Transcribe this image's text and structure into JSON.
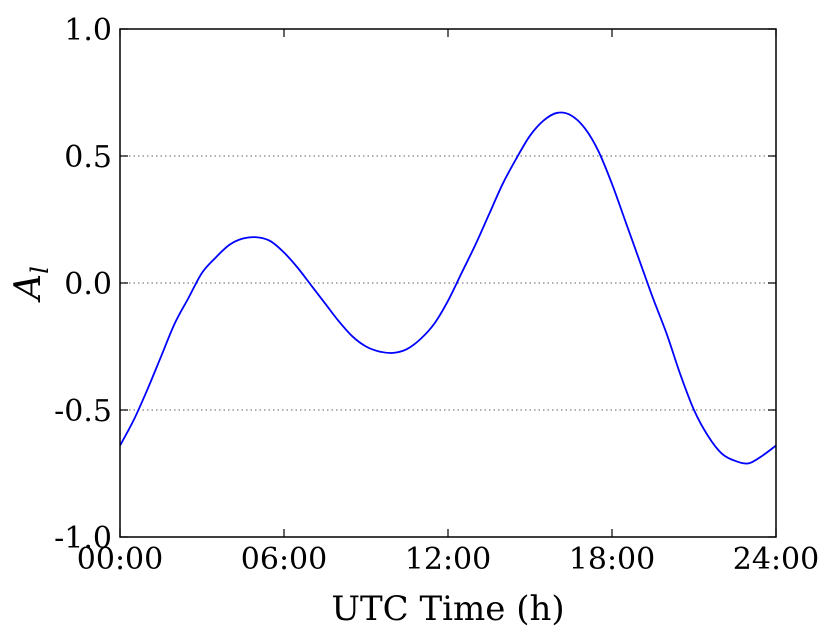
{
  "chart_data": {
    "type": "line",
    "xlabel": "UTC Time (h)",
    "ylabel": {
      "main": "A",
      "subscript": "l"
    },
    "xlim": [
      0,
      24
    ],
    "ylim": [
      -1.0,
      1.0
    ],
    "xticks": [
      {
        "value": 0,
        "label": "00:00"
      },
      {
        "value": 6,
        "label": "06:00"
      },
      {
        "value": 12,
        "label": "12:00"
      },
      {
        "value": 18,
        "label": "18:00"
      },
      {
        "value": 24,
        "label": "24:00"
      }
    ],
    "yticks": [
      {
        "value": 1.0,
        "label": "1.0"
      },
      {
        "value": 0.5,
        "label": "0.5"
      },
      {
        "value": 0.0,
        "label": "0.0"
      },
      {
        "value": -0.5,
        "label": "-0.5"
      },
      {
        "value": -1.0,
        "label": "-1.0"
      }
    ],
    "grid": {
      "axis": "y",
      "style": "dotted",
      "at": [
        0.5,
        0.0,
        -0.5
      ]
    },
    "series": [
      {
        "color": "#0000ff",
        "x": [
          0,
          0.5,
          1,
          1.5,
          2,
          2.5,
          3,
          3.5,
          4,
          4.5,
          5,
          5.5,
          6,
          6.5,
          7,
          7.5,
          8,
          8.5,
          9,
          9.5,
          10,
          10.5,
          11,
          11.5,
          12,
          12.5,
          13,
          13.5,
          14,
          14.5,
          15,
          15.5,
          16,
          16.5,
          17,
          17.5,
          18,
          18.5,
          19,
          19.5,
          20,
          20.5,
          21,
          21.5,
          22,
          22.5,
          23,
          23.5,
          24
        ],
        "y": [
          -0.64,
          -0.54,
          -0.42,
          -0.29,
          -0.16,
          -0.06,
          0.04,
          0.1,
          0.15,
          0.175,
          0.18,
          0.165,
          0.12,
          0.06,
          -0.01,
          -0.08,
          -0.15,
          -0.21,
          -0.25,
          -0.27,
          -0.275,
          -0.26,
          -0.22,
          -0.16,
          -0.07,
          0.04,
          0.15,
          0.27,
          0.39,
          0.49,
          0.58,
          0.64,
          0.67,
          0.66,
          0.61,
          0.52,
          0.39,
          0.24,
          0.09,
          -0.06,
          -0.2,
          -0.36,
          -0.5,
          -0.6,
          -0.67,
          -0.7,
          -0.71,
          -0.68,
          -0.64
        ]
      }
    ]
  }
}
